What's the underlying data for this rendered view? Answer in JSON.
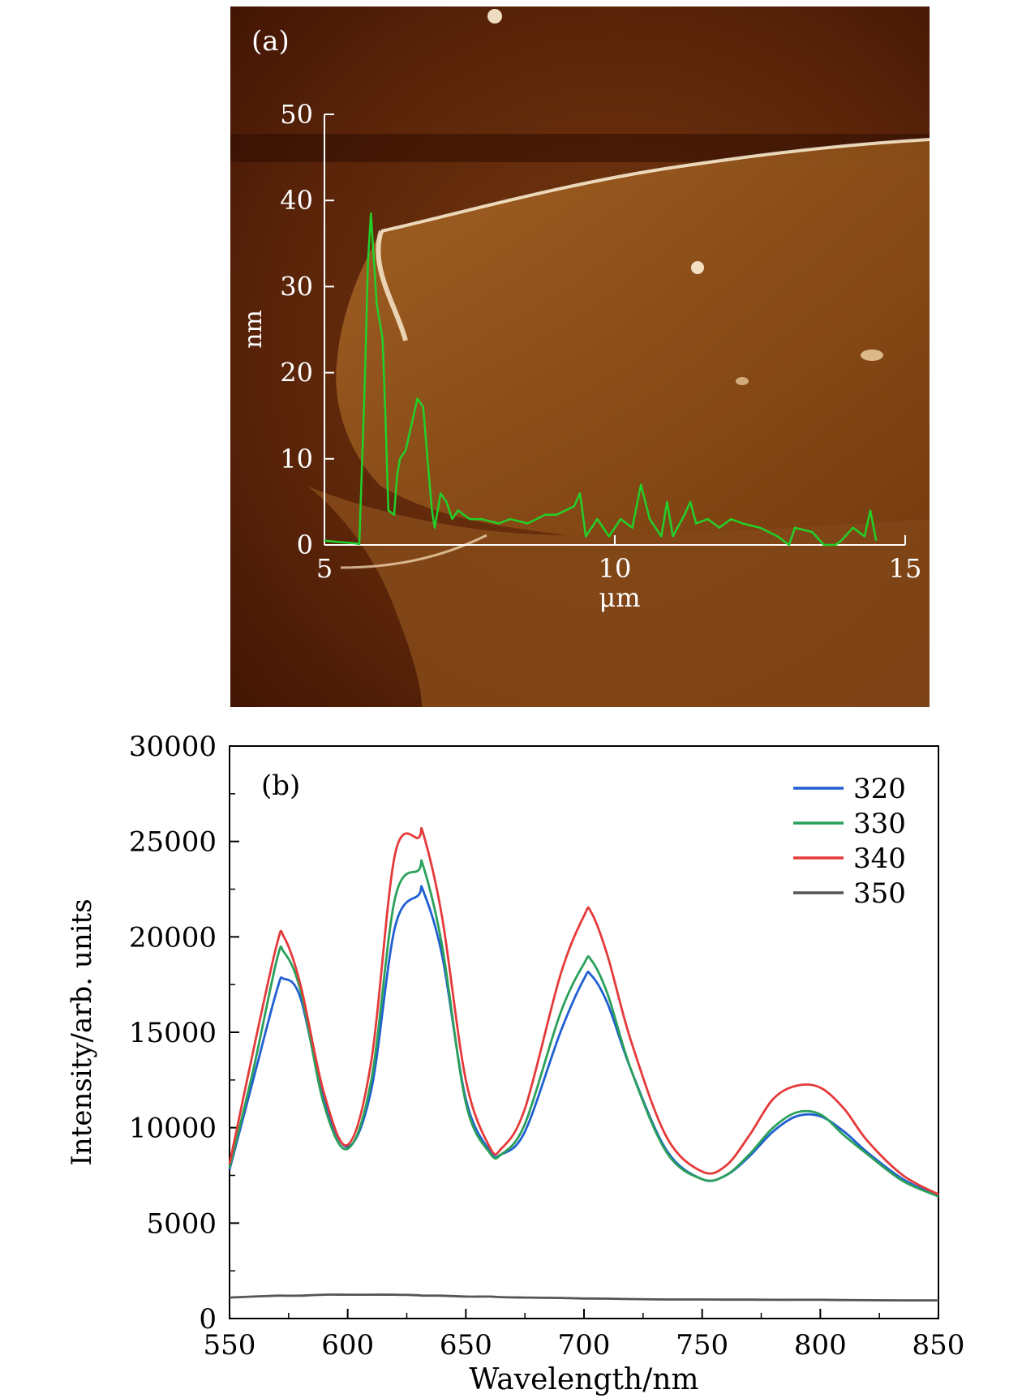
{
  "panel_a": {
    "label": "(a)",
    "chart_data": {
      "type": "line",
      "xlabel": "μm",
      "ylabel": "nm",
      "xlim": [
        5,
        15
      ],
      "ylim": [
        0,
        50
      ],
      "xticks": [
        5,
        10,
        15
      ],
      "yticks": [
        0,
        10,
        20,
        30,
        40,
        50
      ],
      "series": [
        {
          "color": "#22d02a",
          "x": [
            5.0,
            5.3,
            5.5,
            5.6,
            5.7,
            5.75,
            5.8,
            5.9,
            6.0,
            6.05,
            6.1,
            6.2,
            6.25,
            6.3,
            6.4,
            6.5,
            6.6,
            6.7,
            6.75,
            6.8,
            6.85,
            6.9,
            7.0,
            7.1,
            7.2,
            7.3,
            7.5,
            7.7,
            8.0,
            8.2,
            8.5,
            8.8,
            9.0,
            9.3,
            9.4,
            9.5,
            9.7,
            9.9,
            10.1,
            10.3,
            10.45,
            10.6,
            10.8,
            10.9,
            11.0,
            11.2,
            11.3,
            11.4,
            11.6,
            11.8,
            12.0,
            12.2,
            12.5,
            12.8,
            13.0,
            13.1,
            13.4,
            13.6,
            13.8,
            13.9,
            14.1,
            14.3,
            14.4,
            14.5
          ],
          "y": [
            0.5,
            0.3,
            0.2,
            0.1,
            20,
            33,
            38.5,
            28,
            24,
            15,
            4,
            3.5,
            8,
            10,
            11,
            14,
            17,
            16,
            12,
            8,
            4,
            2,
            6,
            5,
            3,
            4,
            3,
            3,
            2.5,
            3,
            2.5,
            3.5,
            3.5,
            4.5,
            6,
            1,
            3,
            1,
            3,
            2,
            7,
            3,
            1,
            5,
            1,
            3.5,
            5,
            2.5,
            3,
            2,
            3,
            2.5,
            2,
            1,
            0,
            2,
            1.5,
            0,
            0,
            0.5,
            2,
            1,
            4,
            0.5
          ]
        }
      ]
    }
  },
  "panel_b": {
    "label": "(b)",
    "chart_data": {
      "type": "line",
      "xlabel": "Wavelength/nm",
      "ylabel": "Intensity/arb. units",
      "xlim": [
        550,
        850
      ],
      "ylim": [
        0,
        30000
      ],
      "xticks": [
        550,
        600,
        650,
        700,
        750,
        800,
        850
      ],
      "yticks": [
        0,
        5000,
        10000,
        15000,
        20000,
        25000,
        30000
      ],
      "x": [
        550,
        560,
        570,
        573,
        580,
        590,
        600,
        610,
        620,
        630,
        632,
        640,
        650,
        660,
        665,
        675,
        690,
        700,
        703,
        710,
        720,
        735,
        750,
        760,
        770,
        780,
        790,
        800,
        810,
        820,
        835,
        850
      ],
      "series": [
        {
          "name": "320",
          "color": "#1f5fd1",
          "values": [
            7800,
            12500,
            17200,
            17800,
            16800,
            11500,
            9000,
            12000,
            20500,
            22200,
            22400,
            19000,
            11500,
            8800,
            8600,
            9800,
            15000,
            17800,
            18000,
            16500,
            13000,
            8800,
            7300,
            7500,
            8500,
            9800,
            10600,
            10600,
            9800,
            8700,
            7300,
            6400
          ]
        },
        {
          "name": "330",
          "color": "#2aa05a",
          "values": [
            7900,
            13000,
            18800,
            19200,
            17200,
            11200,
            8900,
            12500,
            22000,
            23500,
            23700,
            19500,
            11300,
            8700,
            8600,
            10200,
            16000,
            18600,
            18800,
            17000,
            13000,
            8700,
            7300,
            7500,
            8600,
            10000,
            10800,
            10700,
            9600,
            8600,
            7200,
            6400
          ]
        },
        {
          "name": "340",
          "color": "#e53a3a",
          "values": [
            8100,
            14000,
            19600,
            20000,
            17500,
            11800,
            9100,
            13500,
            24300,
            25200,
            25400,
            21000,
            12500,
            9000,
            8900,
            11000,
            18000,
            21100,
            21300,
            19000,
            14500,
            9500,
            7700,
            8000,
            9600,
            11500,
            12200,
            12100,
            11000,
            9300,
            7500,
            6500
          ]
        },
        {
          "name": "350",
          "color": "#555555",
          "values": [
            1100,
            1150,
            1200,
            1200,
            1200,
            1250,
            1250,
            1250,
            1250,
            1220,
            1200,
            1200,
            1150,
            1150,
            1120,
            1100,
            1080,
            1050,
            1050,
            1040,
            1020,
            1000,
            1000,
            990,
            990,
            980,
            980,
            980,
            970,
            960,
            950,
            950
          ]
        }
      ],
      "legend_position": "top-right"
    }
  }
}
